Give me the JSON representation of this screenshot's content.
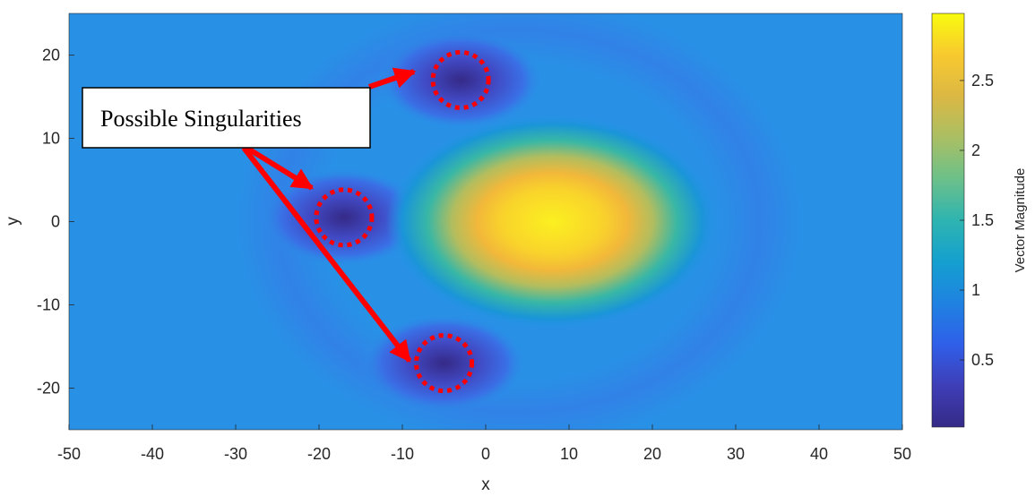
{
  "chart_data": {
    "type": "heatmap",
    "title": "",
    "xlabel": "x",
    "ylabel": "y",
    "xlim": [
      -50,
      50
    ],
    "ylim": [
      -25,
      25
    ],
    "xticks": [
      -50,
      -40,
      -30,
      -20,
      -10,
      0,
      10,
      20,
      30,
      40,
      50
    ],
    "yticks": [
      -20,
      -10,
      0,
      10,
      20
    ],
    "colorbar": {
      "label": "Vector Magnitude",
      "range": [
        0.02,
        2.98
      ],
      "ticks": [
        0.5,
        1,
        1.5,
        2,
        2.5
      ],
      "colormap": "parula"
    },
    "background_value": 0.93,
    "features": [
      {
        "kind": "peak",
        "x": 8,
        "y": 0,
        "value": 2.95
      },
      {
        "kind": "minimum",
        "x": -3,
        "y": 17,
        "value": 0.12
      },
      {
        "kind": "minimum",
        "x": -17,
        "y": 0.5,
        "value": 0.05
      },
      {
        "kind": "minimum",
        "x": -5,
        "y": -17,
        "value": 0.12
      }
    ],
    "annotation": {
      "text": "Possible Singularities",
      "circles": [
        {
          "x": -3,
          "y": 17
        },
        {
          "x": -17,
          "y": 0.5
        },
        {
          "x": -5,
          "y": -17
        }
      ]
    }
  }
}
